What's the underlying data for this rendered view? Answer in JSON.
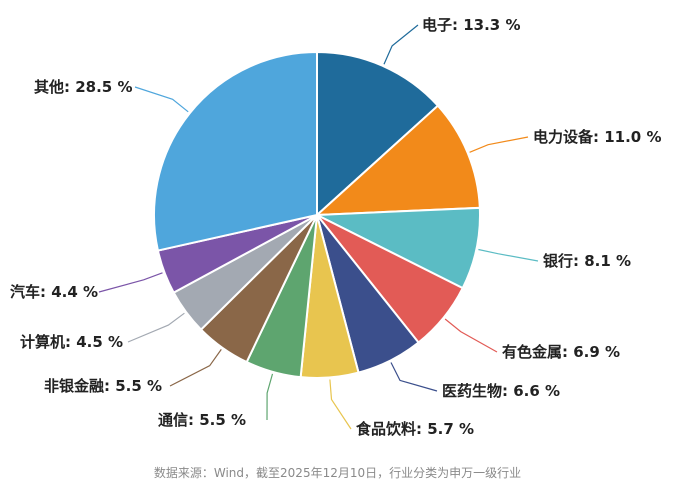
{
  "chart_data": {
    "type": "pie",
    "start_angle_deg": 0,
    "direction": "clockwise",
    "slices": [
      {
        "label": "电子",
        "value": 13.3,
        "display": "电子: 13.3 %",
        "color": "#1f6b9b"
      },
      {
        "label": "电力设备",
        "value": 11.0,
        "display": "电力设备: 11.0 %",
        "color": "#f28a1a"
      },
      {
        "label": "银行",
        "value": 8.1,
        "display": "银行: 8.1 %",
        "color": "#5bbcc4"
      },
      {
        "label": "有色金属",
        "value": 6.9,
        "display": "有色金属: 6.9 %",
        "color": "#e25b56"
      },
      {
        "label": "医药生物",
        "value": 6.6,
        "display": "医药生物: 6.6 %",
        "color": "#3b4f8c"
      },
      {
        "label": "食品饮料",
        "value": 5.7,
        "display": "食品饮料: 5.7 %",
        "color": "#e8c54f"
      },
      {
        "label": "通信",
        "value": 5.5,
        "display": "通信: 5.5 %",
        "color": "#5ea56f"
      },
      {
        "label": "非银金融",
        "value": 5.5,
        "display": "非银金融: 5.5 %",
        "color": "#8a6748"
      },
      {
        "label": "计算机",
        "value": 4.5,
        "display": "计算机: 4.5 %",
        "color": "#a3a9b2"
      },
      {
        "label": "汽车",
        "value": 4.4,
        "display": "汽车: 4.4 %",
        "color": "#7b55a8"
      },
      {
        "label": "其他",
        "value": 28.5,
        "display": "其他: 28.5 %",
        "color": "#4fa6dc"
      }
    ]
  },
  "source_note": "数据来源：Wind，截至2025年12月10日，行业分类为申万一级行业"
}
